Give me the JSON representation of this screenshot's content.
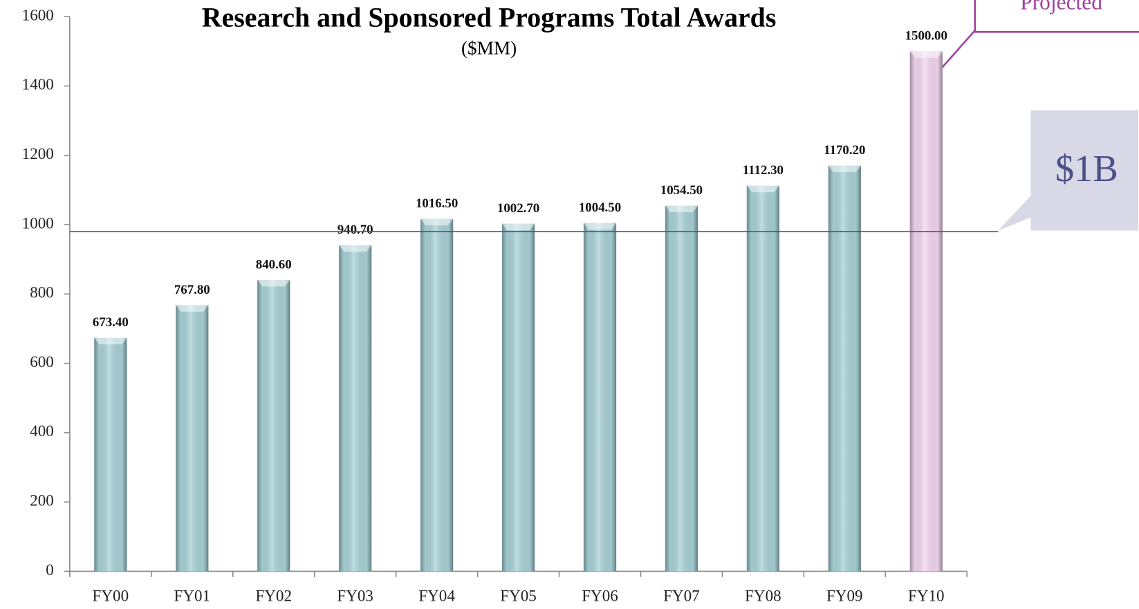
{
  "chart_data": {
    "type": "bar",
    "title": "Research and Sponsored Programs Total Awards",
    "subtitle": "($MM)",
    "categories": [
      "FY00",
      "FY01",
      "FY02",
      "FY03",
      "FY04",
      "FY05",
      "FY06",
      "FY07",
      "FY08",
      "FY09",
      "FY10"
    ],
    "values": [
      673.4,
      767.8,
      840.6,
      940.7,
      1016.5,
      1002.7,
      1004.5,
      1054.5,
      1112.3,
      1170.2,
      1500
    ],
    "value_labels": [
      "673.40",
      "767.80",
      "840.60",
      "940.70",
      "1016.50",
      "1002.70",
      "1004.50",
      "1054.50",
      "1112.30",
      "1170.20",
      "1500.00"
    ],
    "colors": [
      "#a9d3d8",
      "#a9d3d8",
      "#a9d3d8",
      "#a9d3d8",
      "#a9d3d8",
      "#a9d3d8",
      "#a9d3d8",
      "#a9d3d8",
      "#a9d3d8",
      "#a9d3d8",
      "#f5d8f2"
    ],
    "ylim": [
      0,
      1600
    ],
    "yticks": [
      0,
      200,
      400,
      600,
      800,
      1000,
      1200,
      1400,
      1600
    ],
    "grid": false,
    "reference_line": {
      "value": 980,
      "color": "#4a5088",
      "label": "$1B"
    },
    "annotations": [
      {
        "text": "Projected",
        "color": "#a040a0"
      }
    ]
  }
}
